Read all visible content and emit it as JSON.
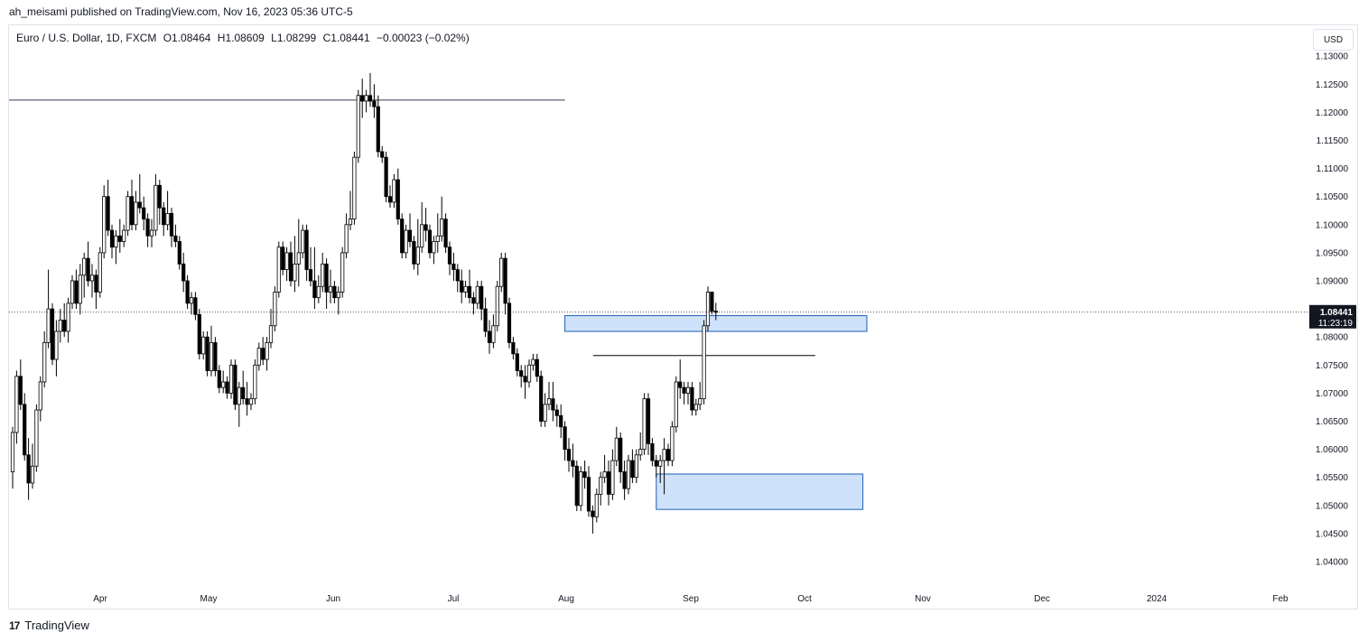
{
  "header": {
    "published_by": "ah_meisami published on TradingView.com, Nov 16, 2023 05:36 UTC-5"
  },
  "legend": {
    "symbol": "Euro / U.S. Dollar, 1D, FXCM",
    "open": "O1.08464",
    "high": "H1.08609",
    "low": "L1.08299",
    "close": "C1.08441",
    "change": "−0.00023 (−0.02%)"
  },
  "currency_button": "USD",
  "footer": {
    "brand": "TradingView",
    "logo": "17"
  },
  "last_price": {
    "value": "1.08441",
    "countdown": "11:23:19"
  },
  "colors": {
    "up": "#ffffff",
    "down": "#000000",
    "wick": "#000000",
    "zone_fill": "#cfe2fb",
    "zone_stroke": "#1e5fb4",
    "resistance": "#787b86"
  },
  "chart_data": {
    "type": "candlestick",
    "title": "",
    "xlabel": "",
    "ylabel": "",
    "ylim": [
      1.0355,
      1.1355
    ],
    "x_ticks": [
      "Apr",
      "May",
      "Jun",
      "Jul",
      "Aug",
      "Sep",
      "Oct",
      "Nov",
      "Dec",
      "2024",
      "Feb"
    ],
    "y_ticks": [
      "1.13000",
      "1.12500",
      "1.12000",
      "1.11500",
      "1.11000",
      "1.10500",
      "1.10000",
      "1.09500",
      "1.09000",
      "1.08500",
      "1.08000",
      "1.07500",
      "1.07000",
      "1.06500",
      "1.06000",
      "1.05500",
      "1.05000",
      "1.04500",
      "1.04000"
    ],
    "candles": [
      [
        1.056,
        1.064,
        1.053,
        1.063
      ],
      [
        1.063,
        1.074,
        1.061,
        1.073
      ],
      [
        1.073,
        1.076,
        1.067,
        1.068
      ],
      [
        1.068,
        1.07,
        1.058,
        1.059
      ],
      [
        1.059,
        1.062,
        1.051,
        1.054
      ],
      [
        1.054,
        1.061,
        1.053,
        1.057
      ],
      [
        1.057,
        1.068,
        1.056,
        1.067
      ],
      [
        1.067,
        1.073,
        1.065,
        1.072
      ],
      [
        1.072,
        1.081,
        1.071,
        1.079
      ],
      [
        1.079,
        1.092,
        1.078,
        1.085
      ],
      [
        1.085,
        1.086,
        1.075,
        1.076
      ],
      [
        1.076,
        1.083,
        1.073,
        1.081
      ],
      [
        1.081,
        1.085,
        1.079,
        1.083
      ],
      [
        1.083,
        1.086,
        1.08,
        1.081
      ],
      [
        1.081,
        1.087,
        1.079,
        1.086
      ],
      [
        1.086,
        1.091,
        1.085,
        1.09
      ],
      [
        1.09,
        1.092,
        1.085,
        1.086
      ],
      [
        1.086,
        1.093,
        1.084,
        1.091
      ],
      [
        1.091,
        1.095,
        1.087,
        1.094
      ],
      [
        1.094,
        1.097,
        1.089,
        1.09
      ],
      [
        1.09,
        1.093,
        1.087,
        1.091
      ],
      [
        1.091,
        1.092,
        1.085,
        1.088
      ],
      [
        1.088,
        1.096,
        1.087,
        1.095
      ],
      [
        1.095,
        1.107,
        1.094,
        1.105
      ],
      [
        1.105,
        1.108,
        1.098,
        1.099
      ],
      [
        1.099,
        1.1,
        1.094,
        1.096
      ],
      [
        1.096,
        1.099,
        1.093,
        1.098
      ],
      [
        1.098,
        1.101,
        1.095,
        1.097
      ],
      [
        1.097,
        1.1,
        1.096,
        1.099
      ],
      [
        1.099,
        1.106,
        1.098,
        1.105
      ],
      [
        1.105,
        1.108,
        1.099,
        1.1
      ],
      [
        1.1,
        1.106,
        1.099,
        1.104
      ],
      [
        1.104,
        1.109,
        1.102,
        1.103
      ],
      [
        1.103,
        1.105,
        1.099,
        1.101
      ],
      [
        1.101,
        1.102,
        1.096,
        1.098
      ],
      [
        1.098,
        1.101,
        1.096,
        1.099
      ],
      [
        1.099,
        1.109,
        1.098,
        1.107
      ],
      [
        1.107,
        1.108,
        1.1,
        1.103
      ],
      [
        1.103,
        1.104,
        1.098,
        1.1
      ],
      [
        1.1,
        1.106,
        1.099,
        1.102
      ],
      [
        1.102,
        1.103,
        1.096,
        1.098
      ],
      [
        1.098,
        1.1,
        1.096,
        1.097
      ],
      [
        1.097,
        1.098,
        1.092,
        1.093
      ],
      [
        1.093,
        1.095,
        1.088,
        1.09
      ],
      [
        1.09,
        1.091,
        1.085,
        1.086
      ],
      [
        1.086,
        1.088,
        1.084,
        1.087
      ],
      [
        1.087,
        1.088,
        1.083,
        1.084
      ],
      [
        1.084,
        1.085,
        1.076,
        1.077
      ],
      [
        1.077,
        1.081,
        1.076,
        1.08
      ],
      [
        1.08,
        1.081,
        1.073,
        1.074
      ],
      [
        1.074,
        1.082,
        1.073,
        1.079
      ],
      [
        1.079,
        1.08,
        1.073,
        1.074
      ],
      [
        1.074,
        1.075,
        1.07,
        1.071
      ],
      [
        1.071,
        1.074,
        1.07,
        1.072
      ],
      [
        1.072,
        1.073,
        1.069,
        1.07
      ],
      [
        1.07,
        1.076,
        1.069,
        1.075
      ],
      [
        1.075,
        1.076,
        1.067,
        1.068
      ],
      [
        1.068,
        1.072,
        1.064,
        1.071
      ],
      [
        1.071,
        1.074,
        1.068,
        1.069
      ],
      [
        1.069,
        1.072,
        1.066,
        1.068
      ],
      [
        1.068,
        1.07,
        1.067,
        1.069
      ],
      [
        1.069,
        1.076,
        1.068,
        1.075
      ],
      [
        1.075,
        1.079,
        1.074,
        1.078
      ],
      [
        1.078,
        1.08,
        1.075,
        1.076
      ],
      [
        1.076,
        1.08,
        1.074,
        1.079
      ],
      [
        1.079,
        1.085,
        1.078,
        1.082
      ],
      [
        1.082,
        1.089,
        1.081,
        1.088
      ],
      [
        1.088,
        1.097,
        1.087,
        1.096
      ],
      [
        1.096,
        1.097,
        1.091,
        1.092
      ],
      [
        1.092,
        1.096,
        1.09,
        1.095
      ],
      [
        1.095,
        1.097,
        1.089,
        1.09
      ],
      [
        1.09,
        1.098,
        1.088,
        1.093
      ],
      [
        1.093,
        1.101,
        1.089,
        1.095
      ],
      [
        1.095,
        1.1,
        1.094,
        1.099
      ],
      [
        1.099,
        1.1,
        1.09,
        1.092
      ],
      [
        1.092,
        1.096,
        1.089,
        1.09
      ],
      [
        1.09,
        1.096,
        1.085,
        1.087
      ],
      [
        1.087,
        1.091,
        1.086,
        1.089
      ],
      [
        1.089,
        1.095,
        1.088,
        1.093
      ],
      [
        1.093,
        1.094,
        1.085,
        1.088
      ],
      [
        1.088,
        1.092,
        1.086,
        1.089
      ],
      [
        1.089,
        1.09,
        1.086,
        1.087
      ],
      [
        1.087,
        1.089,
        1.084,
        1.088
      ],
      [
        1.088,
        1.096,
        1.087,
        1.095
      ],
      [
        1.095,
        1.102,
        1.094,
        1.1
      ],
      [
        1.1,
        1.106,
        1.099,
        1.101
      ],
      [
        1.101,
        1.113,
        1.1,
        1.112
      ],
      [
        1.112,
        1.124,
        1.111,
        1.123
      ],
      [
        1.123,
        1.126,
        1.119,
        1.122
      ],
      [
        1.122,
        1.124,
        1.12,
        1.123
      ],
      [
        1.123,
        1.127,
        1.121,
        1.122
      ],
      [
        1.122,
        1.125,
        1.119,
        1.121
      ],
      [
        1.121,
        1.123,
        1.112,
        1.113
      ],
      [
        1.113,
        1.114,
        1.111,
        1.112
      ],
      [
        1.112,
        1.113,
        1.104,
        1.105
      ],
      [
        1.105,
        1.107,
        1.103,
        1.104
      ],
      [
        1.104,
        1.109,
        1.103,
        1.108
      ],
      [
        1.108,
        1.11,
        1.1,
        1.101
      ],
      [
        1.101,
        1.102,
        1.094,
        1.095
      ],
      [
        1.095,
        1.1,
        1.094,
        1.099
      ],
      [
        1.099,
        1.102,
        1.096,
        1.097
      ],
      [
        1.097,
        1.098,
        1.092,
        1.093
      ],
      [
        1.093,
        1.101,
        1.091,
        1.096
      ],
      [
        1.096,
        1.104,
        1.095,
        1.1
      ],
      [
        1.1,
        1.103,
        1.097,
        1.099
      ],
      [
        1.099,
        1.1,
        1.094,
        1.095
      ],
      [
        1.095,
        1.098,
        1.093,
        1.097
      ],
      [
        1.097,
        1.102,
        1.095,
        1.098
      ],
      [
        1.098,
        1.105,
        1.097,
        1.101
      ],
      [
        1.101,
        1.102,
        1.095,
        1.096
      ],
      [
        1.096,
        1.097,
        1.091,
        1.093
      ],
      [
        1.093,
        1.095,
        1.09,
        1.092
      ],
      [
        1.092,
        1.093,
        1.088,
        1.09
      ],
      [
        1.09,
        1.092,
        1.086,
        1.088
      ],
      [
        1.088,
        1.09,
        1.087,
        1.089
      ],
      [
        1.089,
        1.092,
        1.086,
        1.087
      ],
      [
        1.087,
        1.088,
        1.084,
        1.086
      ],
      [
        1.086,
        1.09,
        1.085,
        1.089
      ],
      [
        1.089,
        1.09,
        1.083,
        1.085
      ],
      [
        1.085,
        1.087,
        1.08,
        1.081
      ],
      [
        1.081,
        1.083,
        1.077,
        1.079
      ],
      [
        1.079,
        1.084,
        1.078,
        1.082
      ],
      [
        1.082,
        1.09,
        1.081,
        1.089
      ],
      [
        1.089,
        1.095,
        1.088,
        1.094
      ],
      [
        1.094,
        1.095,
        1.084,
        1.086
      ],
      [
        1.086,
        1.087,
        1.078,
        1.079
      ],
      [
        1.079,
        1.08,
        1.076,
        1.077
      ],
      [
        1.077,
        1.078,
        1.073,
        1.074
      ],
      [
        1.074,
        1.075,
        1.071,
        1.073
      ],
      [
        1.073,
        1.075,
        1.069,
        1.072
      ],
      [
        1.072,
        1.076,
        1.071,
        1.075
      ],
      [
        1.075,
        1.077,
        1.074,
        1.076
      ],
      [
        1.076,
        1.077,
        1.072,
        1.073
      ],
      [
        1.073,
        1.074,
        1.064,
        1.065
      ],
      [
        1.065,
        1.07,
        1.064,
        1.068
      ],
      [
        1.068,
        1.072,
        1.067,
        1.069
      ],
      [
        1.069,
        1.072,
        1.065,
        1.067
      ],
      [
        1.067,
        1.068,
        1.064,
        1.066
      ],
      [
        1.066,
        1.068,
        1.062,
        1.064
      ],
      [
        1.064,
        1.065,
        1.058,
        1.06
      ],
      [
        1.06,
        1.062,
        1.056,
        1.058
      ],
      [
        1.058,
        1.061,
        1.055,
        1.057
      ],
      [
        1.057,
        1.058,
        1.049,
        1.05
      ],
      [
        1.05,
        1.057,
        1.049,
        1.056
      ],
      [
        1.056,
        1.058,
        1.053,
        1.055
      ],
      [
        1.055,
        1.057,
        1.048,
        1.049
      ],
      [
        1.049,
        1.05,
        1.045,
        1.048
      ],
      [
        1.048,
        1.053,
        1.047,
        1.052
      ],
      [
        1.052,
        1.056,
        1.05,
        1.055
      ],
      [
        1.055,
        1.059,
        1.054,
        1.056
      ],
      [
        1.056,
        1.058,
        1.05,
        1.052
      ],
      [
        1.052,
        1.06,
        1.051,
        1.058
      ],
      [
        1.058,
        1.064,
        1.057,
        1.062
      ],
      [
        1.062,
        1.063,
        1.054,
        1.056
      ],
      [
        1.056,
        1.058,
        1.051,
        1.053
      ],
      [
        1.053,
        1.059,
        1.052,
        1.058
      ],
      [
        1.058,
        1.06,
        1.054,
        1.055
      ],
      [
        1.055,
        1.06,
        1.054,
        1.059
      ],
      [
        1.059,
        1.063,
        1.058,
        1.06
      ],
      [
        1.06,
        1.07,
        1.059,
        1.069
      ],
      [
        1.069,
        1.07,
        1.059,
        1.061
      ],
      [
        1.061,
        1.062,
        1.057,
        1.058
      ],
      [
        1.058,
        1.059,
        1.055,
        1.057
      ],
      [
        1.057,
        1.059,
        1.054,
        1.058
      ],
      [
        1.058,
        1.062,
        1.052,
        1.06
      ],
      [
        1.06,
        1.061,
        1.057,
        1.058
      ],
      [
        1.058,
        1.065,
        1.057,
        1.064
      ],
      [
        1.064,
        1.073,
        1.063,
        1.072
      ],
      [
        1.072,
        1.076,
        1.069,
        1.071
      ],
      [
        1.071,
        1.072,
        1.068,
        1.07
      ],
      [
        1.07,
        1.072,
        1.068,
        1.071
      ],
      [
        1.071,
        1.072,
        1.066,
        1.067
      ],
      [
        1.067,
        1.069,
        1.066,
        1.068
      ],
      [
        1.068,
        1.072,
        1.067,
        1.069
      ],
      [
        1.069,
        1.083,
        1.068,
        1.082
      ],
      [
        1.082,
        1.089,
        1.081,
        1.088
      ],
      [
        1.088,
        1.088,
        1.084,
        1.0846
      ],
      [
        1.0846,
        1.0861,
        1.083,
        1.0844
      ]
    ],
    "horizontal_lines": [
      {
        "price": 1.1222,
        "from_index": 0,
        "to_index": 139
      },
      {
        "price": 1.0767,
        "from_index": 147,
        "to_index": 202
      }
    ],
    "zones": [
      {
        "top": 1.0838,
        "bottom": 1.081,
        "from_index": 139,
        "to_index": 215
      },
      {
        "top": 1.0556,
        "bottom": 1.0493,
        "from_index": 162,
        "to_index": 214
      }
    ],
    "current_price": 1.08441
  }
}
